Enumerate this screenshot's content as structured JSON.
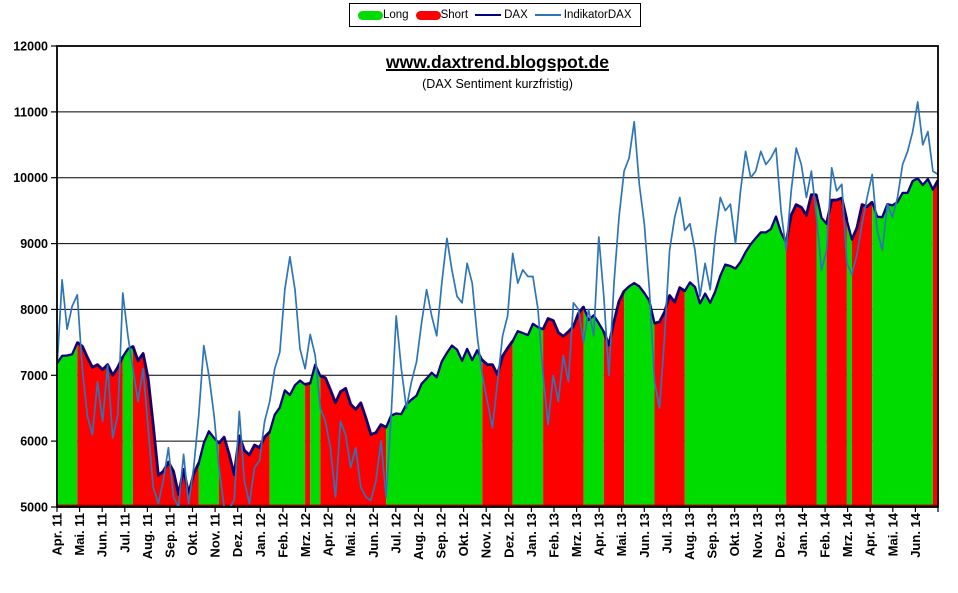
{
  "title": "www.daxtrend.blogspot.de",
  "subtitle": "(DAX Sentiment kurzfristig)",
  "legend": {
    "items": [
      {
        "label": "Long",
        "type": "area",
        "color": "#00db00"
      },
      {
        "label": "Short",
        "type": "area",
        "color": "#fe0000"
      },
      {
        "label": "DAX",
        "type": "line",
        "color": "#000080"
      },
      {
        "label": "IndikatorDAX",
        "type": "line",
        "color": "#2e75b6"
      }
    ]
  },
  "colors": {
    "background": "#ffffff",
    "grid": "#000000",
    "plot_border": "#000000",
    "long_area": "#00db00",
    "short_area": "#fe0000",
    "short_border": "#8e0000",
    "dax_line": "#000080",
    "indikator_line": "#2e75b6"
  },
  "chart_data": {
    "type": "area",
    "title": "www.daxtrend.blogspot.de",
    "subtitle": "(DAX Sentiment kurzfristig)",
    "xlabel": "",
    "ylabel": "",
    "ylim": [
      5000,
      12000
    ],
    "yticks": [
      5000,
      6000,
      7000,
      8000,
      9000,
      10000,
      11000,
      12000
    ],
    "grid": true,
    "legend_position": "top-center",
    "x_unit": "weekly samples, Apr 2011 - early Jul 2014",
    "month_labels": [
      "Apr. 11",
      "Mai. 11",
      "Jun. 11",
      "Jul. 11",
      "Aug. 11",
      "Sep. 11",
      "Okt. 11",
      "Nov. 11",
      "Dez. 11",
      "Jan. 12",
      "Feb. 12",
      "Mrz. 12",
      "Apr. 12",
      "Mai. 12",
      "Jun. 12",
      "Jul. 12",
      "Aug. 12",
      "Sep. 12",
      "Okt. 12",
      "Nov. 12",
      "Dez. 12",
      "Jan. 13",
      "Feb. 13",
      "Mrz. 13",
      "Apr. 13",
      "Mai. 13",
      "Jun. 13",
      "Jul. 13",
      "Aug. 13",
      "Sep. 13",
      "Okt. 13",
      "Nov. 13",
      "Dez. 13",
      "Jan. 14",
      "Feb. 14",
      "Mrz. 14",
      "Apr. 14",
      "Mai. 14",
      "Jun. 14"
    ],
    "series": [
      {
        "name": "DAX",
        "type": "line",
        "color": "#000080",
        "values": [
          7180,
          7295,
          7300,
          7320,
          7500,
          7440,
          7270,
          7120,
          7160,
          7085,
          7160,
          7000,
          7120,
          7280,
          7400,
          7440,
          7220,
          7330,
          6950,
          6240,
          5480,
          5540,
          5680,
          5540,
          5190,
          5570,
          5200,
          5500,
          5670,
          5970,
          6150,
          6050,
          5970,
          6060,
          5800,
          5490,
          6080,
          5860,
          5790,
          5940,
          5900,
          6060,
          6140,
          6400,
          6510,
          6770,
          6700,
          6850,
          6920,
          6860,
          6880,
          7160,
          6990,
          6960,
          6780,
          6580,
          6750,
          6800,
          6560,
          6480,
          6580,
          6350,
          6100,
          6130,
          6250,
          6210,
          6390,
          6420,
          6410,
          6560,
          6630,
          6690,
          6870,
          6950,
          7040,
          6970,
          7210,
          7340,
          7450,
          7390,
          7220,
          7400,
          7230,
          7380,
          7230,
          7160,
          7160,
          7010,
          7290,
          7410,
          7520,
          7670,
          7640,
          7610,
          7780,
          7730,
          7700,
          7860,
          7830,
          7650,
          7590,
          7660,
          7740,
          7940,
          8040,
          7840,
          7910,
          7790,
          7660,
          7460,
          7810,
          8120,
          8280,
          8350,
          8400,
          8350,
          8250,
          8130,
          7790,
          7810,
          7960,
          8210,
          8110,
          8330,
          8280,
          8410,
          8340,
          8090,
          8240,
          8100,
          8270,
          8510,
          8680,
          8660,
          8620,
          8720,
          8870,
          8990,
          9080,
          9170,
          9170,
          9220,
          9410,
          9170,
          9010,
          9430,
          9590,
          9550,
          9430,
          9740,
          9740,
          9390,
          9300,
          9660,
          9660,
          9690,
          9350,
          9060,
          9240,
          9590,
          9560,
          9630,
          9410,
          9400,
          9600,
          9580,
          9630,
          9770,
          9770,
          9950,
          9990,
          9890,
          9980,
          9820,
          9960
        ]
      },
      {
        "name": "IndikatorDAX",
        "type": "line",
        "color": "#2e75b6",
        "values": [
          7120,
          8450,
          7700,
          8050,
          8220,
          7100,
          6380,
          6100,
          6900,
          6300,
          7150,
          6050,
          6400,
          8250,
          7600,
          7100,
          6600,
          7100,
          6200,
          5300,
          5050,
          5400,
          5900,
          5150,
          5000,
          5800,
          5050,
          5600,
          6400,
          7450,
          7000,
          6400,
          5600,
          5000,
          4980,
          5100,
          6450,
          5400,
          5050,
          5600,
          5700,
          6300,
          6600,
          7100,
          7350,
          8300,
          8800,
          8300,
          7400,
          7100,
          7620,
          7300,
          6500,
          6300,
          5900,
          5150,
          6300,
          6100,
          5600,
          5900,
          5300,
          5150,
          5100,
          5400,
          6000,
          5150,
          6400,
          7900,
          7100,
          6500,
          6900,
          7200,
          7800,
          8300,
          7900,
          7600,
          8400,
          9080,
          8600,
          8200,
          8100,
          8700,
          8400,
          7600,
          7000,
          6600,
          6200,
          6900,
          7600,
          7900,
          8850,
          8400,
          8600,
          8500,
          8500,
          8000,
          7000,
          6250,
          7000,
          6600,
          7300,
          6900,
          8100,
          8000,
          7500,
          8000,
          7600,
          9100,
          8200,
          7000,
          8400,
          9400,
          10100,
          10300,
          10850,
          9900,
          9300,
          8300,
          6900,
          6500,
          7600,
          8900,
          9400,
          9700,
          9200,
          9300,
          8900,
          8200,
          8700,
          8300,
          9100,
          9700,
          9500,
          9600,
          9000,
          9800,
          10400,
          10000,
          10100,
          10400,
          10200,
          10300,
          10450,
          9500,
          8900,
          9800,
          10450,
          10200,
          9700,
          10100,
          9400,
          8600,
          8900,
          10150,
          9800,
          9900,
          8700,
          8530,
          8840,
          9300,
          9700,
          10050,
          9200,
          8900,
          9600,
          9400,
          9700,
          10200,
          10400,
          10700,
          11150,
          10500,
          10700,
          10100,
          10050
        ]
      },
      {
        "name": "Sentiment",
        "type": "signal-area",
        "long_label": "Long",
        "short_label": "Short",
        "long_color": "#00db00",
        "short_color": "#fe0000",
        "short_border": "#8e0000",
        "runs": [
          [
            0,
            "L"
          ],
          [
            4,
            "S"
          ],
          [
            13,
            "L"
          ],
          [
            15,
            "S"
          ],
          [
            28,
            "L"
          ],
          [
            32,
            "S"
          ],
          [
            42,
            "L"
          ],
          [
            49,
            "S"
          ],
          [
            50,
            "L"
          ],
          [
            52,
            "S"
          ],
          [
            65,
            "L"
          ],
          [
            84,
            "S"
          ],
          [
            90,
            "L"
          ],
          [
            96,
            "S"
          ],
          [
            104,
            "L"
          ],
          [
            108,
            "S"
          ],
          [
            112,
            "L"
          ],
          [
            118,
            "S"
          ],
          [
            124,
            "L"
          ],
          [
            144,
            "S"
          ],
          [
            150,
            "L"
          ],
          [
            152,
            "S"
          ],
          [
            156,
            "L"
          ],
          [
            157,
            "S"
          ],
          [
            161,
            "L"
          ],
          [
            173,
            "S"
          ]
        ]
      }
    ]
  }
}
